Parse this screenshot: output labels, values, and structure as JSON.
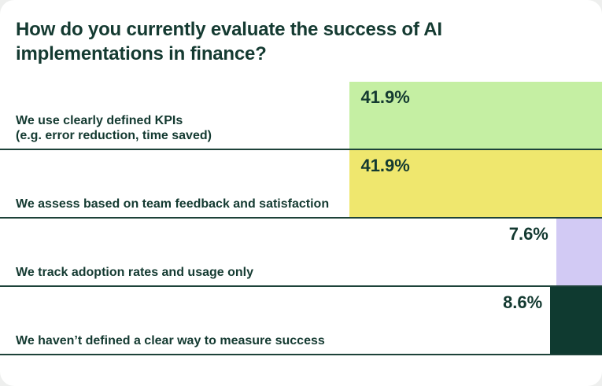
{
  "theme": {
    "page_background": "#eeefee",
    "card_background": "#ffffff",
    "text_color": "#143a31",
    "separator_color": "#1d4239"
  },
  "chart_data": {
    "type": "bar",
    "orientation": "horizontal",
    "bar_alignment": "right",
    "title": "How do you currently evaluate the success of AI implementations in finance?",
    "xlabel": "",
    "ylabel": "",
    "xlim": [
      0,
      100
    ],
    "value_suffix": "%",
    "grid": false,
    "legend": false,
    "categories": [
      "We use clearly defined KPIs (e.g. error reduction, time saved)",
      "We assess based on team feedback and satisfaction",
      "We track adoption rates and usage only",
      "We haven’t defined a clear way to measure success"
    ],
    "values": [
      41.9,
      41.9,
      7.6,
      8.6
    ],
    "items": [
      {
        "label": "We use clearly defined KPIs\n(e.g. error reduction, time saved)",
        "value": 41.9,
        "value_label": "41.9%",
        "color": "#c5efa3",
        "value_label_position": "inside-start"
      },
      {
        "label": "We assess based on team feedback and satisfaction",
        "value": 41.9,
        "value_label": "41.9%",
        "color": "#efe76e",
        "value_label_position": "inside-start"
      },
      {
        "label": "We track adoption rates and usage only",
        "value": 7.6,
        "value_label": "7.6%",
        "color": "#d2caf4",
        "value_label_position": "outside"
      },
      {
        "label": "We haven’t defined a clear way to measure success",
        "value": 8.6,
        "value_label": "8.6%",
        "color": "#0f3a30",
        "value_label_position": "outside"
      }
    ]
  }
}
